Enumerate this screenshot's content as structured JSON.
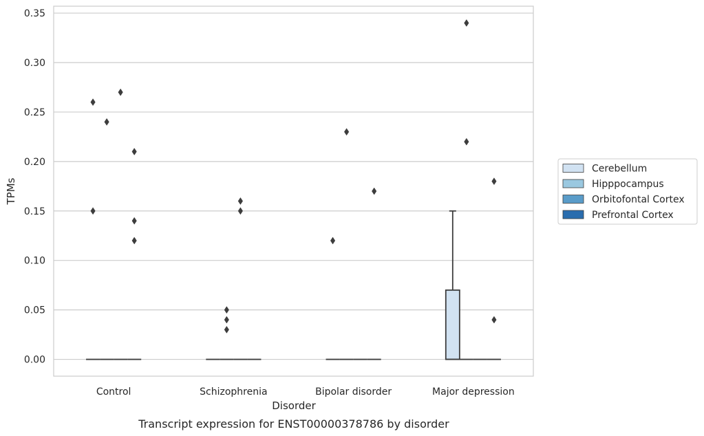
{
  "chart_data": {
    "type": "box",
    "title": "",
    "caption": "Transcript expression for ENST00000378786 by disorder",
    "xlabel": "Disorder",
    "ylabel": "TPMs",
    "ylim": [
      -0.017,
      0.357
    ],
    "yticks": [
      0.0,
      0.05,
      0.1,
      0.15,
      0.2,
      0.25,
      0.3,
      0.35
    ],
    "ytick_labels": [
      "0.00",
      "0.05",
      "0.10",
      "0.15",
      "0.20",
      "0.25",
      "0.30",
      "0.35"
    ],
    "grid": "horizontal",
    "legend_position": "right",
    "categories": [
      "Control",
      "Schizophrenia",
      "Bipolar disorder",
      "Major depression"
    ],
    "series": [
      {
        "name": "Cerebellum",
        "color": "#d1e2f2",
        "boxes": [
          {
            "q1": 0,
            "median": 0,
            "q3": 0,
            "whisker_low": 0,
            "whisker_high": 0,
            "outliers": [
              0.26,
              0.15
            ]
          },
          {
            "q1": 0,
            "median": 0,
            "q3": 0,
            "whisker_low": 0,
            "whisker_high": 0,
            "outliers": []
          },
          {
            "q1": 0,
            "median": 0,
            "q3": 0,
            "whisker_low": 0,
            "whisker_high": 0,
            "outliers": [
              0.12
            ]
          },
          {
            "q1": 0,
            "median": 0,
            "q3": 0.07,
            "whisker_low": 0,
            "whisker_high": 0.15,
            "outliers": []
          }
        ]
      },
      {
        "name": "Hipppocampus",
        "color": "#9ac8e0",
        "boxes": [
          {
            "q1": 0,
            "median": 0,
            "q3": 0,
            "whisker_low": 0,
            "whisker_high": 0,
            "outliers": [
              0.24
            ]
          },
          {
            "q1": 0,
            "median": 0,
            "q3": 0,
            "whisker_low": 0,
            "whisker_high": 0,
            "outliers": [
              0.05,
              0.04,
              0.03
            ]
          },
          {
            "q1": 0,
            "median": 0,
            "q3": 0,
            "whisker_low": 0,
            "whisker_high": 0,
            "outliers": [
              0.23
            ]
          },
          {
            "q1": 0,
            "median": 0,
            "q3": 0,
            "whisker_low": 0,
            "whisker_high": 0,
            "outliers": [
              0.34,
              0.22
            ]
          }
        ]
      },
      {
        "name": "Orbitofontal Cortex",
        "color": "#5a9cc9",
        "boxes": [
          {
            "q1": 0,
            "median": 0,
            "q3": 0,
            "whisker_low": 0,
            "whisker_high": 0,
            "outliers": [
              0.27
            ]
          },
          {
            "q1": 0,
            "median": 0,
            "q3": 0,
            "whisker_low": 0,
            "whisker_high": 0,
            "outliers": [
              0.16,
              0.15
            ]
          },
          {
            "q1": 0,
            "median": 0,
            "q3": 0,
            "whisker_low": 0,
            "whisker_high": 0,
            "outliers": []
          },
          {
            "q1": 0,
            "median": 0,
            "q3": 0,
            "whisker_low": 0,
            "whisker_high": 0,
            "outliers": []
          }
        ]
      },
      {
        "name": "Prefrontal Cortex",
        "color": "#2a6dae",
        "boxes": [
          {
            "q1": 0,
            "median": 0,
            "q3": 0,
            "whisker_low": 0,
            "whisker_high": 0,
            "outliers": [
              0.21,
              0.14,
              0.12
            ]
          },
          {
            "q1": 0,
            "median": 0,
            "q3": 0,
            "whisker_low": 0,
            "whisker_high": 0,
            "outliers": []
          },
          {
            "q1": 0,
            "median": 0,
            "q3": 0,
            "whisker_low": 0,
            "whisker_high": 0,
            "outliers": [
              0.17
            ]
          },
          {
            "q1": 0,
            "median": 0,
            "q3": 0,
            "whisker_low": 0,
            "whisker_high": 0,
            "outliers": [
              0.18,
              0.04
            ]
          }
        ]
      }
    ]
  }
}
